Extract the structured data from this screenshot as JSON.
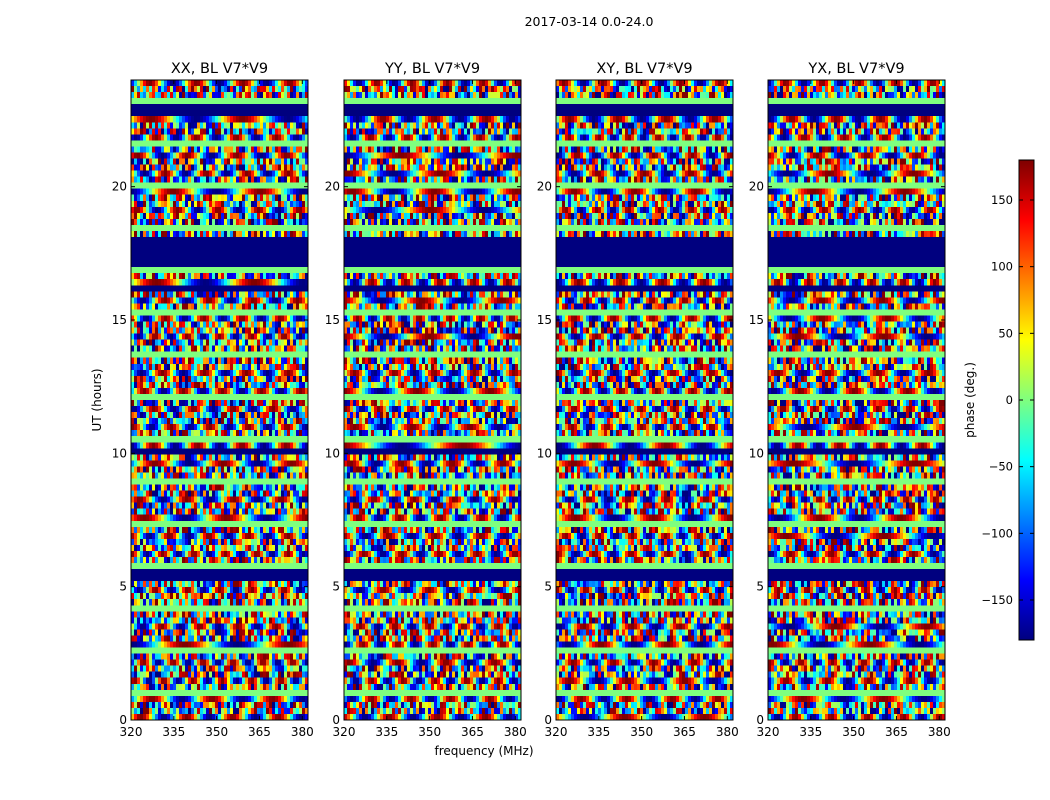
{
  "chart_data": {
    "type": "heatmap",
    "suptitle": "2017-03-14 0.0-24.0",
    "xlabel": "frequency (MHz)",
    "ylabel": "UT (hours)",
    "xlim": [
      320,
      382
    ],
    "ylim": [
      0,
      24
    ],
    "xticks": [
      320,
      335,
      350,
      365,
      380
    ],
    "yticks": [
      0,
      5,
      10,
      15,
      20
    ],
    "panels": [
      {
        "title": "XX, BL V7*V9",
        "pol": "XX"
      },
      {
        "title": "YY, BL V7*V9",
        "pol": "YY"
      },
      {
        "title": "XY, BL V7*V9",
        "pol": "XY"
      },
      {
        "title": "YX, BL V7*V9",
        "pol": "YX"
      }
    ],
    "flagged_ut_ranges": [
      [
        16.9,
        18.0
      ],
      [
        10.0,
        10.3
      ],
      [
        22.7,
        23.1
      ],
      [
        16.0,
        16.4
      ],
      [
        5.3,
        5.6
      ]
    ],
    "colorbar": {
      "label": "phase (deg.)",
      "vmin": -180,
      "vmax": 180,
      "ticks": [
        -150,
        -100,
        -50,
        0,
        50,
        100,
        150
      ],
      "tick_labels": [
        "−150",
        "−100",
        "−50",
        "0",
        "50",
        "100",
        "150"
      ],
      "colormap": "jet",
      "colors": [
        "#00007f",
        "#0000ff",
        "#007fff",
        "#00ffff",
        "#7fff7f",
        "#ffff00",
        "#ff7f00",
        "#ff0000",
        "#7f0000"
      ]
    }
  }
}
